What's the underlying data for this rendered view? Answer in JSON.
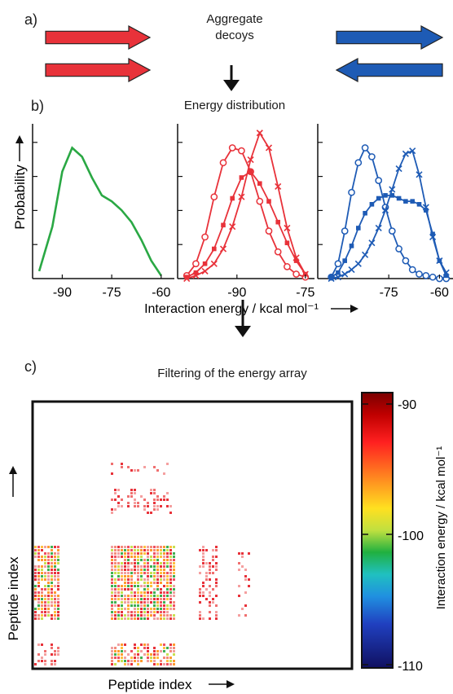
{
  "panel_a": {
    "label": "a)",
    "title": "Aggregate\ndecoys",
    "left_color": "#e8323a",
    "right_color": "#1e5bb5"
  },
  "panel_b": {
    "label": "b)",
    "title": "Energy distribution",
    "ylabel": "Probability",
    "xlabel": "Interaction energy / kcal mol⁻¹",
    "ticks_1": [
      "-90",
      "-75",
      "-60"
    ],
    "ticks_2": [
      "-90",
      "-75"
    ],
    "ticks_3": [
      "-75",
      "-60"
    ],
    "green": "#2aa844",
    "red": "#e8323a",
    "blue": "#1e5bb5"
  },
  "panel_c": {
    "label": "c)",
    "title": "Filtering of the energy array",
    "ylabel": "Peptide index",
    "xlabel": "Peptide index",
    "colorbar_label": "Interaction energy / kcal mol⁻¹",
    "colorbar_ticks": [
      "-90",
      "-100",
      "-110"
    ]
  },
  "chart_data": [
    {
      "type": "line",
      "ylabel": "Probability",
      "xlabel": "Interaction energy / kcal mol⁻¹",
      "x": [
        -97,
        -93,
        -90,
        -87,
        -84,
        -81,
        -78,
        -75,
        -72,
        -69,
        -66,
        -63,
        -60
      ],
      "series": [
        {
          "values": [
            0.05,
            0.35,
            0.72,
            0.88,
            0.82,
            0.68,
            0.56,
            0.52,
            0.46,
            0.38,
            0.26,
            0.12,
            0.02
          ]
        }
      ]
    },
    {
      "type": "line",
      "xlabel": "Interaction energy / kcal mol⁻¹",
      "x": [
        -101,
        -99,
        -97,
        -95,
        -93,
        -91,
        -89,
        -87,
        -85,
        -83,
        -81,
        -79,
        -77,
        -75
      ],
      "series": [
        {
          "values": [
            0.02,
            0.1,
            0.28,
            0.55,
            0.78,
            0.88,
            0.86,
            0.72,
            0.52,
            0.32,
            0.18,
            0.08,
            0.03,
            0.01
          ]
        },
        {
          "values": [
            0.01,
            0.04,
            0.1,
            0.2,
            0.36,
            0.54,
            0.68,
            0.72,
            0.64,
            0.52,
            0.38,
            0.24,
            0.12,
            0.03
          ]
        },
        {
          "values": [
            0.0,
            0.02,
            0.05,
            0.1,
            0.2,
            0.35,
            0.55,
            0.8,
            0.98,
            0.88,
            0.62,
            0.34,
            0.14,
            0.03
          ]
        }
      ]
    },
    {
      "type": "line",
      "xlabel": "Interaction energy / kcal mol⁻¹",
      "x": [
        -92,
        -90,
        -88,
        -86,
        -84,
        -82,
        -80,
        -78,
        -76,
        -74,
        -72,
        -70,
        -68,
        -66,
        -64,
        -62,
        -60,
        -58
      ],
      "series": [
        {
          "values": [
            0.01,
            0.1,
            0.32,
            0.58,
            0.78,
            0.88,
            0.82,
            0.66,
            0.48,
            0.32,
            0.2,
            0.12,
            0.06,
            0.03,
            0.02,
            0.01,
            0.0,
            0.0
          ]
        },
        {
          "values": [
            0.01,
            0.04,
            0.12,
            0.22,
            0.34,
            0.44,
            0.5,
            0.54,
            0.56,
            0.56,
            0.54,
            0.52,
            0.52,
            0.5,
            0.46,
            0.3,
            0.12,
            0.02
          ]
        },
        {
          "values": [
            0.0,
            0.01,
            0.03,
            0.06,
            0.1,
            0.16,
            0.24,
            0.34,
            0.46,
            0.6,
            0.74,
            0.84,
            0.86,
            0.7,
            0.48,
            0.28,
            0.12,
            0.04
          ]
        }
      ]
    },
    {
      "type": "heatmap",
      "xlabel": "Peptide index",
      "ylabel": "Peptide index",
      "colorbar_range": [
        -110,
        -90
      ]
    }
  ]
}
